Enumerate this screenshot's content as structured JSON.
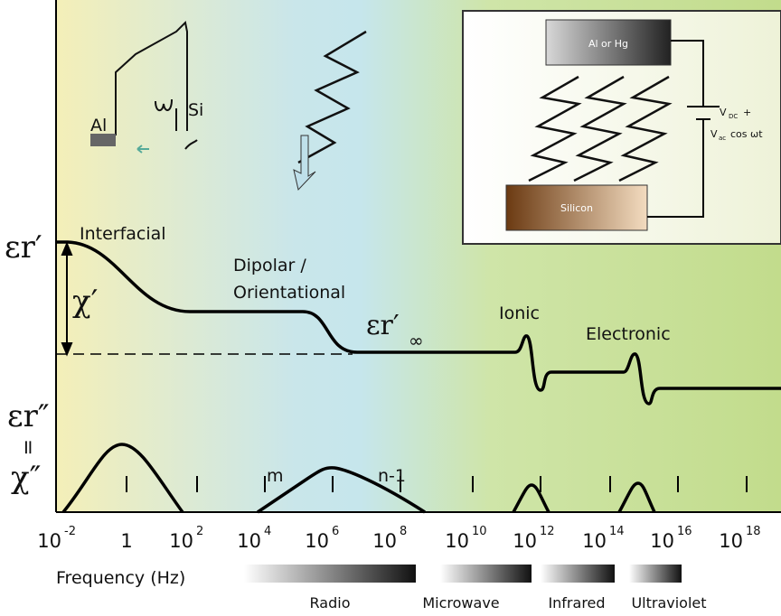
{
  "labels": {
    "interfacial": "Interfacial",
    "dipolar_1": "Dipolar /",
    "dipolar_2": "Orientational",
    "ionic": "Ionic",
    "electronic": "Electronic",
    "eps_real": "εr′",
    "chi_real": "χ′",
    "eps_imag": "εr″",
    "equals": "=",
    "chi_imag": "χ″",
    "eps_inf": "εr′",
    "inf_sub": "∞",
    "m": "m",
    "n1": "n-1",
    "al": "Al",
    "si": "Si"
  },
  "inset": {
    "electrode": "Al or Hg",
    "substrate": "Silicon",
    "vdc": "V",
    "vdc_sub": "DC",
    "vdc_plus": "+",
    "vac": "V",
    "vac_sub": "ac",
    "vac_rest": "cos ωt"
  },
  "axis": {
    "title": "Frequency (Hz)",
    "ticks": [
      {
        "base": "10",
        "sup": "-2"
      },
      {
        "base": "1"
      },
      {
        "base": "10",
        "sup": "2"
      },
      {
        "base": "10",
        "sup": "4"
      },
      {
        "base": "10",
        "sup": "6"
      },
      {
        "base": "10",
        "sup": "8"
      },
      {
        "base": "10",
        "sup": "10"
      },
      {
        "base": "10",
        "sup": "12"
      },
      {
        "base": "10",
        "sup": "14"
      },
      {
        "base": "10",
        "sup": "16"
      },
      {
        "base": "10",
        "sup": "18"
      }
    ]
  },
  "bands": [
    "Radio",
    "Microwave",
    "Infrared",
    "Ultraviolet"
  ]
}
